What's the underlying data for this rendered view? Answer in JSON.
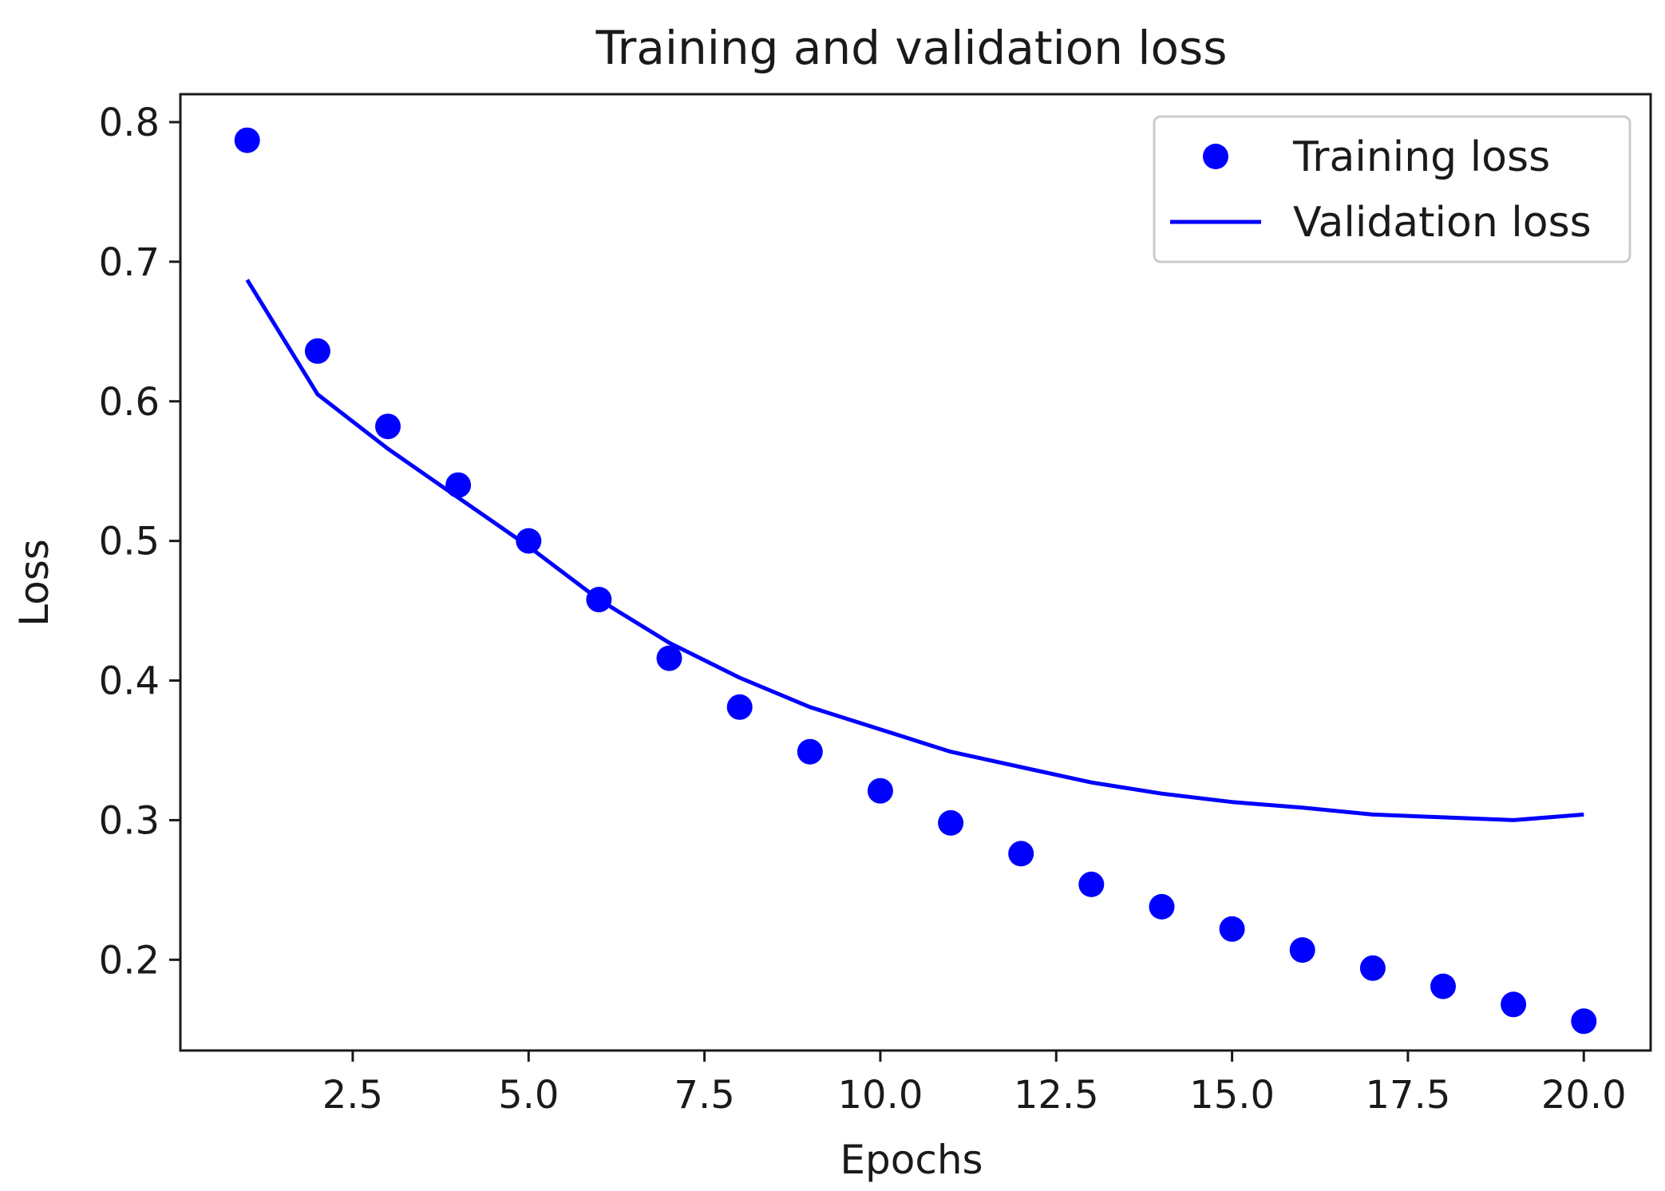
{
  "chart_data": {
    "type": "line",
    "title": "Training and validation loss",
    "xlabel": "Epochs",
    "ylabel": "Loss",
    "xlim": [
      0.05,
      20.95
    ],
    "ylim": [
      0.135,
      0.82
    ],
    "x_ticks": [
      2.5,
      5.0,
      7.5,
      10.0,
      12.5,
      15.0,
      17.5,
      20.0
    ],
    "x_tick_labels": [
      "2.5",
      "5.0",
      "7.5",
      "10.0",
      "12.5",
      "15.0",
      "17.5",
      "20.0"
    ],
    "y_ticks": [
      0.2,
      0.3,
      0.4,
      0.5,
      0.6,
      0.7,
      0.8
    ],
    "y_tick_labels": [
      "0.2",
      "0.3",
      "0.4",
      "0.5",
      "0.6",
      "0.7",
      "0.8"
    ],
    "grid": false,
    "legend_position": "top-right",
    "x": [
      1,
      2,
      3,
      4,
      5,
      6,
      7,
      8,
      9,
      10,
      11,
      12,
      13,
      14,
      15,
      16,
      17,
      18,
      19,
      20
    ],
    "series": [
      {
        "name": "Training loss",
        "style": "markers",
        "color": "#0000ff",
        "values": [
          0.787,
          0.636,
          0.582,
          0.54,
          0.5,
          0.458,
          0.416,
          0.381,
          0.349,
          0.321,
          0.298,
          0.276,
          0.254,
          0.238,
          0.222,
          0.207,
          0.194,
          0.181,
          0.168,
          0.156
        ]
      },
      {
        "name": "Validation loss",
        "style": "line",
        "color": "#0000ff",
        "values": [
          0.687,
          0.605,
          0.566,
          0.531,
          0.496,
          0.458,
          0.427,
          0.402,
          0.381,
          0.365,
          0.349,
          0.338,
          0.327,
          0.319,
          0.313,
          0.309,
          0.304,
          0.302,
          0.3,
          0.304
        ]
      }
    ]
  }
}
